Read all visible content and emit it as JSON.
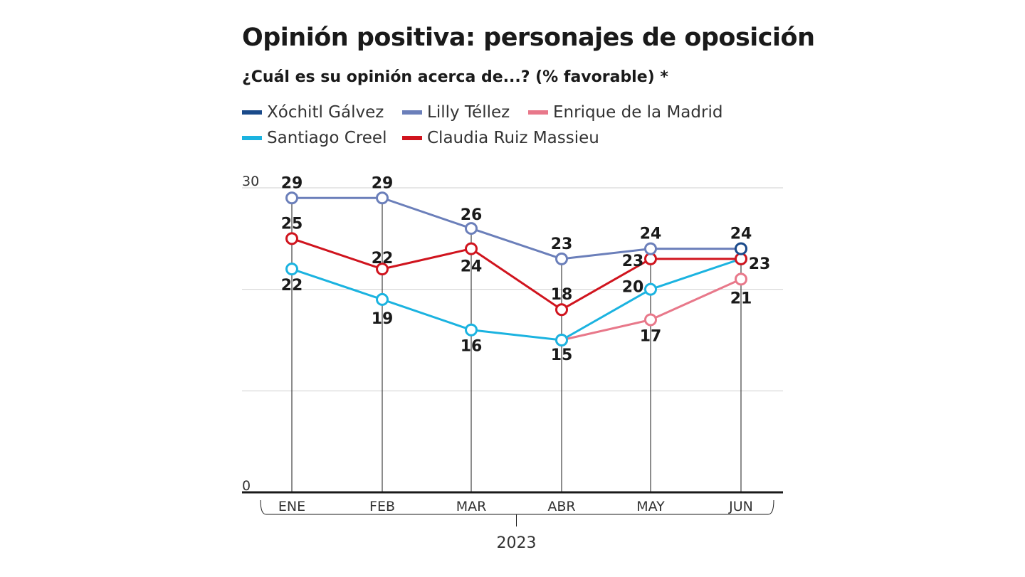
{
  "chart_data": {
    "type": "line",
    "title": "Opinión positiva: personajes de oposición",
    "subtitle": "¿Cuál es su opinión acerca de...? (% favorable) *",
    "categories": [
      "ENE",
      "FEB",
      "MAR",
      "ABR",
      "MAY",
      "JUN"
    ],
    "year_label": "2023",
    "ylim": [
      0,
      30
    ],
    "y_tick_labels": [
      "0",
      "30"
    ],
    "grid": true,
    "legend_position": "top",
    "series": [
      {
        "name": "Xóchitl Gálvez",
        "color": "#1a4a8a",
        "values": [
          null,
          null,
          null,
          null,
          null,
          24
        ]
      },
      {
        "name": "Lilly Téllez",
        "color": "#6b7fba",
        "values": [
          29,
          29,
          26,
          23,
          24,
          24
        ]
      },
      {
        "name": "Enrique de la Madrid",
        "color": "#e8788a",
        "values": [
          null,
          null,
          null,
          15,
          17,
          21
        ]
      },
      {
        "name": "Santiago Creel",
        "color": "#1bb3e0",
        "values": [
          22,
          19,
          16,
          15,
          20,
          23
        ]
      },
      {
        "name": "Claudia Ruiz Massieu",
        "color": "#d0141e",
        "values": [
          25,
          22,
          24,
          18,
          23,
          23
        ]
      }
    ],
    "data_labels": [
      {
        "category": "ENE",
        "value": 29,
        "text": "29"
      },
      {
        "category": "ENE",
        "value": 25,
        "text": "25"
      },
      {
        "category": "ENE",
        "value": 22,
        "text": "22"
      },
      {
        "category": "FEB",
        "value": 29,
        "text": "29"
      },
      {
        "category": "FEB",
        "value": 22,
        "text": "22"
      },
      {
        "category": "FEB",
        "value": 19,
        "text": "19"
      },
      {
        "category": "MAR",
        "value": 26,
        "text": "26"
      },
      {
        "category": "MAR",
        "value": 24,
        "text": "24"
      },
      {
        "category": "MAR",
        "value": 16,
        "text": "16"
      },
      {
        "category": "ABR",
        "value": 23,
        "text": "23"
      },
      {
        "category": "ABR",
        "value": 18,
        "text": "18"
      },
      {
        "category": "ABR",
        "value": 15,
        "text": "15"
      },
      {
        "category": "MAY",
        "value": 24,
        "text": "24"
      },
      {
        "category": "MAY",
        "value": 23,
        "text": "23"
      },
      {
        "category": "MAY",
        "value": 20,
        "text": "20"
      },
      {
        "category": "MAY",
        "value": 17,
        "text": "17"
      },
      {
        "category": "JUN",
        "value": 24,
        "text": "24"
      },
      {
        "category": "JUN",
        "value": 23,
        "text": "23"
      },
      {
        "category": "JUN",
        "value": 21,
        "text": "21"
      }
    ]
  }
}
